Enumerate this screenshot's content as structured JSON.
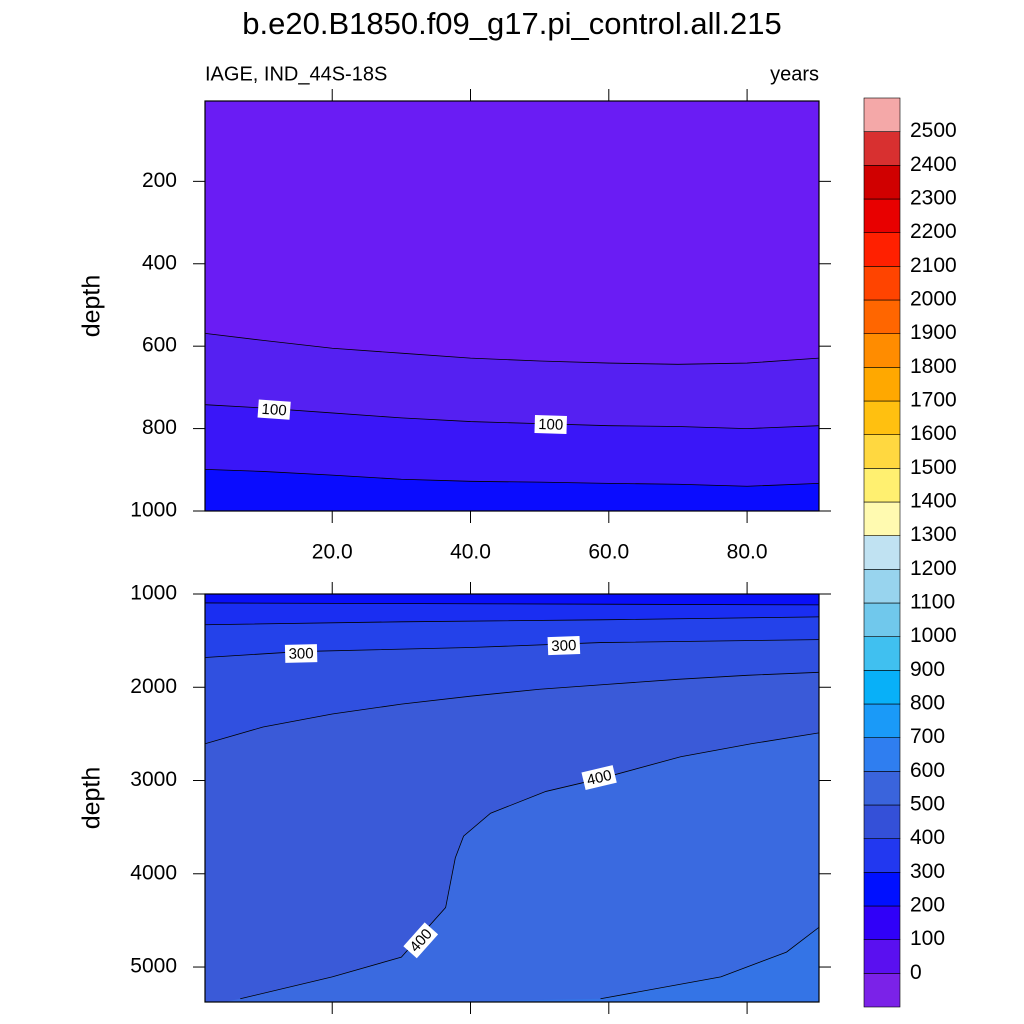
{
  "title": "b.e20.B1850.f09_g17.pi_control.all.215",
  "subtitle_left": "IAGE, IND_44S-18S",
  "subtitle_right": "years",
  "chart_data": [
    {
      "type": "contour",
      "ylabel": "depth",
      "xlim": [
        1.6,
        90.4
      ],
      "ylim": [
        1000,
        5
      ],
      "xticks": [
        {
          "value": 20,
          "label": "20.0"
        },
        {
          "value": 40,
          "label": "40.0"
        },
        {
          "value": 60,
          "label": "60.0"
        },
        {
          "value": 80,
          "label": "80.0"
        }
      ],
      "yticks": [
        200,
        400,
        600,
        800,
        1000
      ],
      "fills": [
        "#6a1cf4",
        "#5520f2",
        "#3a16f8",
        "#0a0cff"
      ],
      "lines": [
        {
          "x": [
            1.6,
            10,
            20,
            30,
            40,
            50,
            60,
            70,
            80,
            90.4
          ],
          "y": [
            569,
            586,
            605,
            617,
            629,
            636,
            641,
            644,
            641,
            629
          ]
        },
        {
          "x": [
            1.6,
            10,
            20,
            30,
            40,
            50,
            60,
            70,
            80,
            90.4
          ],
          "y": [
            742,
            750,
            762,
            774,
            783,
            788,
            793,
            795,
            800,
            793
          ]
        },
        {
          "x": [
            1.6,
            10,
            20,
            30,
            40,
            50,
            60,
            70,
            80,
            90.4
          ],
          "y": [
            899,
            904,
            913,
            923,
            928,
            930,
            933,
            935,
            940,
            933
          ]
        }
      ],
      "contour_labels": [
        {
          "x": 11.6,
          "y": 754,
          "value": 100
        },
        {
          "x": 51.6,
          "y": 790,
          "value": 100
        }
      ]
    },
    {
      "type": "contour",
      "ylabel": "depth",
      "xlim": [
        1.6,
        90.4
      ],
      "ylim": [
        5375,
        1000
      ],
      "xticks": [
        20,
        40,
        60,
        80
      ],
      "yticks": [
        1000,
        2000,
        3000,
        4000,
        5000
      ],
      "fills": [
        "#0a10f8",
        "#1a2ef2",
        "#2442ea",
        "#3050e0",
        "#3a5ad8",
        "#3a6ae0",
        "#3474e6"
      ],
      "lines": [
        {
          "x": [
            1.6,
            44.4,
            90.4
          ],
          "y": [
            1096,
            1106,
            1117
          ]
        },
        {
          "x": [
            1.6,
            30,
            58.8,
            90.4
          ],
          "y": [
            1330,
            1298,
            1277,
            1245
          ]
        },
        {
          "x": [
            1.6,
            15.4,
            40,
            58.8,
            90.4
          ],
          "y": [
            1681,
            1617,
            1574,
            1521,
            1489
          ]
        },
        {
          "x": [
            1.6,
            10,
            20,
            30,
            40,
            50,
            60,
            70,
            80,
            90.4
          ],
          "y": [
            2606,
            2426,
            2287,
            2181,
            2096,
            2021,
            1968,
            1915,
            1872,
            1840
          ]
        },
        {
          "x": [
            6.7,
            20,
            30,
            36.4,
            37.8,
            39,
            42.9,
            50.9,
            58.8,
            70.4,
            80.6,
            90.4
          ],
          "y": [
            5340,
            5106,
            4894,
            4362,
            3830,
            3596,
            3351,
            3117,
            2979,
            2745,
            2606,
            2489
          ]
        },
        {
          "x": [
            58.8,
            76.2,
            85.7,
            90.4
          ],
          "y": [
            5340,
            5106,
            4840,
            4574
          ]
        }
      ],
      "contour_labels": [
        {
          "x": 15.5,
          "y": 1638,
          "value": 300
        },
        {
          "x": 53.5,
          "y": 1553,
          "value": 300
        },
        {
          "x": 58.6,
          "y": 2968,
          "value": 400
        },
        {
          "x": 32.8,
          "y": 4713,
          "value": 400
        }
      ]
    }
  ],
  "colorbar": {
    "levels": [
      0,
      100,
      200,
      300,
      400,
      500,
      600,
      700,
      800,
      900,
      1000,
      1100,
      1200,
      1300,
      1400,
      1500,
      1600,
      1700,
      1800,
      1900,
      2000,
      2100,
      2200,
      2300,
      2400,
      2500
    ],
    "colors": [
      "#7b22e8",
      "#5a10f0",
      "#3000f8",
      "#0010ff",
      "#2238f0",
      "#3450d8",
      "#3a64dc",
      "#2f7ef0",
      "#1a9af8",
      "#08b0f8",
      "#40c0f0",
      "#70c8ec",
      "#98d4ee",
      "#c0e2f2",
      "#fffab0",
      "#fff070",
      "#ffd840",
      "#ffc010",
      "#ffa800",
      "#ff8c00",
      "#ff6600",
      "#ff4400",
      "#ff2000",
      "#e80000",
      "#d00000",
      "#d83030",
      "#f4a8a8"
    ]
  }
}
